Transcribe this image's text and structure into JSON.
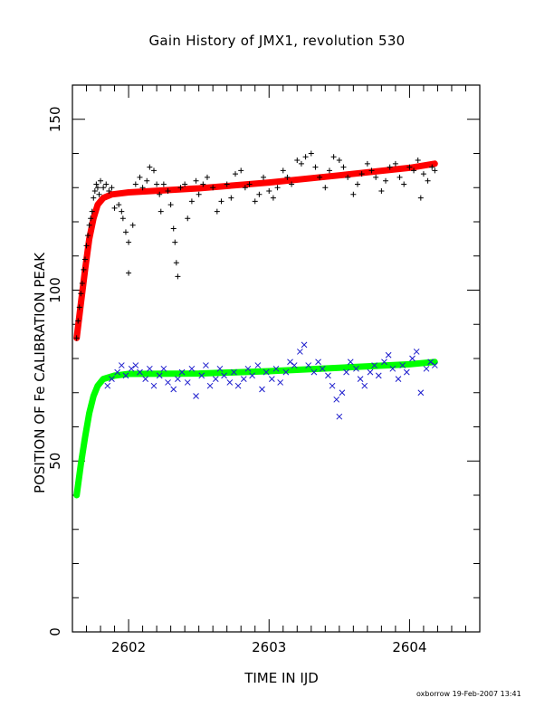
{
  "chart_data": {
    "type": "scatter",
    "title": "Gain History of JMX1, revolution 530",
    "xlabel": "TIME IN IJD",
    "ylabel": "POSITION OF Fe CALIBRATION PEAK",
    "xlim": [
      2601.6,
      2604.5
    ],
    "ylim": [
      0,
      160
    ],
    "xticks": [
      2602,
      2603,
      2604
    ],
    "yticks": [
      0,
      50,
      100,
      150
    ],
    "grid": false,
    "legend": "none",
    "series": [
      {
        "marker": "plus",
        "color": "#000000",
        "points": [
          [
            2601.63,
            86
          ],
          [
            2601.64,
            91
          ],
          [
            2601.65,
            95
          ],
          [
            2601.66,
            99
          ],
          [
            2601.67,
            102
          ],
          [
            2601.68,
            106
          ],
          [
            2601.69,
            109
          ],
          [
            2601.7,
            113
          ],
          [
            2601.71,
            116
          ],
          [
            2601.72,
            119
          ],
          [
            2601.73,
            121
          ],
          [
            2601.74,
            123
          ],
          [
            2601.75,
            127
          ],
          [
            2601.76,
            129
          ],
          [
            2601.77,
            131
          ],
          [
            2601.78,
            130
          ],
          [
            2601.79,
            128
          ],
          [
            2601.8,
            132
          ],
          [
            2601.82,
            130
          ],
          [
            2601.84,
            131
          ],
          [
            2601.86,
            129
          ],
          [
            2601.88,
            130
          ],
          [
            2601.9,
            124
          ],
          [
            2601.93,
            125
          ],
          [
            2601.95,
            123
          ],
          [
            2601.96,
            121
          ],
          [
            2601.98,
            117
          ],
          [
            2602.0,
            114
          ],
          [
            2602.0,
            105
          ],
          [
            2602.03,
            119
          ],
          [
            2602.05,
            131
          ],
          [
            2602.08,
            133
          ],
          [
            2602.1,
            130
          ],
          [
            2602.13,
            132
          ],
          [
            2602.15,
            136
          ],
          [
            2602.18,
            135
          ],
          [
            2602.2,
            131
          ],
          [
            2602.22,
            128
          ],
          [
            2602.23,
            123
          ],
          [
            2602.25,
            131
          ],
          [
            2602.28,
            129
          ],
          [
            2602.3,
            125
          ],
          [
            2602.32,
            118
          ],
          [
            2602.33,
            114
          ],
          [
            2602.34,
            108
          ],
          [
            2602.35,
            104
          ],
          [
            2602.37,
            130
          ],
          [
            2602.4,
            131
          ],
          [
            2602.42,
            121
          ],
          [
            2602.45,
            126
          ],
          [
            2602.48,
            132
          ],
          [
            2602.5,
            128
          ],
          [
            2602.53,
            131
          ],
          [
            2602.56,
            133
          ],
          [
            2602.6,
            130
          ],
          [
            2602.63,
            123
          ],
          [
            2602.66,
            126
          ],
          [
            2602.7,
            131
          ],
          [
            2602.73,
            127
          ],
          [
            2602.76,
            134
          ],
          [
            2602.8,
            135
          ],
          [
            2602.83,
            130
          ],
          [
            2602.86,
            131
          ],
          [
            2602.9,
            126
          ],
          [
            2602.93,
            128
          ],
          [
            2602.96,
            133
          ],
          [
            2603.0,
            129
          ],
          [
            2603.03,
            127
          ],
          [
            2603.06,
            130
          ],
          [
            2603.1,
            135
          ],
          [
            2603.13,
            133
          ],
          [
            2603.16,
            131
          ],
          [
            2603.2,
            138
          ],
          [
            2603.23,
            137
          ],
          [
            2603.26,
            139
          ],
          [
            2603.3,
            140
          ],
          [
            2603.33,
            136
          ],
          [
            2603.36,
            133
          ],
          [
            2603.4,
            130
          ],
          [
            2603.43,
            135
          ],
          [
            2603.46,
            139
          ],
          [
            2603.5,
            138
          ],
          [
            2603.53,
            136
          ],
          [
            2603.56,
            133
          ],
          [
            2603.6,
            128
          ],
          [
            2603.63,
            131
          ],
          [
            2603.66,
            134
          ],
          [
            2603.7,
            137
          ],
          [
            2603.73,
            135
          ],
          [
            2603.76,
            133
          ],
          [
            2603.8,
            129
          ],
          [
            2603.83,
            132
          ],
          [
            2603.86,
            136
          ],
          [
            2603.9,
            137
          ],
          [
            2603.93,
            133
          ],
          [
            2603.96,
            131
          ],
          [
            2604.0,
            136
          ],
          [
            2604.03,
            135
          ],
          [
            2604.06,
            138
          ],
          [
            2604.08,
            127
          ],
          [
            2604.1,
            134
          ],
          [
            2604.13,
            132
          ],
          [
            2604.16,
            136
          ],
          [
            2604.18,
            135
          ]
        ]
      },
      {
        "marker": "cross",
        "color": "#1a1acc",
        "points": [
          [
            2601.85,
            72
          ],
          [
            2601.88,
            74
          ],
          [
            2601.92,
            76
          ],
          [
            2601.95,
            78
          ],
          [
            2601.98,
            75
          ],
          [
            2602.02,
            77
          ],
          [
            2602.05,
            78
          ],
          [
            2602.08,
            76
          ],
          [
            2602.12,
            74
          ],
          [
            2602.15,
            77
          ],
          [
            2602.18,
            72
          ],
          [
            2602.22,
            75
          ],
          [
            2602.25,
            77
          ],
          [
            2602.28,
            73
          ],
          [
            2602.32,
            71
          ],
          [
            2602.35,
            74
          ],
          [
            2602.38,
            76
          ],
          [
            2602.42,
            73
          ],
          [
            2602.45,
            77
          ],
          [
            2602.48,
            69
          ],
          [
            2602.52,
            75
          ],
          [
            2602.55,
            78
          ],
          [
            2602.58,
            72
          ],
          [
            2602.62,
            74
          ],
          [
            2602.65,
            77
          ],
          [
            2602.68,
            75
          ],
          [
            2602.72,
            73
          ],
          [
            2602.75,
            76
          ],
          [
            2602.78,
            72
          ],
          [
            2602.82,
            74
          ],
          [
            2602.85,
            77
          ],
          [
            2602.88,
            75
          ],
          [
            2602.92,
            78
          ],
          [
            2602.95,
            71
          ],
          [
            2602.98,
            76
          ],
          [
            2603.02,
            74
          ],
          [
            2603.05,
            77
          ],
          [
            2603.08,
            73
          ],
          [
            2603.12,
            76
          ],
          [
            2603.15,
            79
          ],
          [
            2603.18,
            78
          ],
          [
            2603.22,
            82
          ],
          [
            2603.25,
            84
          ],
          [
            2603.28,
            78
          ],
          [
            2603.32,
            76
          ],
          [
            2603.35,
            79
          ],
          [
            2603.38,
            77
          ],
          [
            2603.42,
            75
          ],
          [
            2603.45,
            72
          ],
          [
            2603.48,
            68
          ],
          [
            2603.5,
            63
          ],
          [
            2603.52,
            70
          ],
          [
            2603.55,
            76
          ],
          [
            2603.58,
            79
          ],
          [
            2603.62,
            77
          ],
          [
            2603.65,
            74
          ],
          [
            2603.68,
            72
          ],
          [
            2603.72,
            76
          ],
          [
            2603.75,
            78
          ],
          [
            2603.78,
            75
          ],
          [
            2603.82,
            79
          ],
          [
            2603.85,
            81
          ],
          [
            2603.88,
            77
          ],
          [
            2603.92,
            74
          ],
          [
            2603.95,
            78
          ],
          [
            2603.98,
            76
          ],
          [
            2604.02,
            80
          ],
          [
            2604.05,
            82
          ],
          [
            2604.08,
            70
          ],
          [
            2604.12,
            77
          ],
          [
            2604.15,
            79
          ],
          [
            2604.18,
            78
          ]
        ]
      },
      {
        "style": "thick-line",
        "color": "#ff0000",
        "points": [
          [
            2601.63,
            86
          ],
          [
            2601.66,
            96
          ],
          [
            2601.69,
            106
          ],
          [
            2601.72,
            115
          ],
          [
            2601.75,
            121
          ],
          [
            2601.78,
            125
          ],
          [
            2601.82,
            127
          ],
          [
            2601.88,
            128
          ],
          [
            2602.0,
            128.6
          ],
          [
            2602.5,
            129.8
          ],
          [
            2603.0,
            131.5
          ],
          [
            2603.5,
            133.6
          ],
          [
            2604.0,
            135.8
          ],
          [
            2604.18,
            137
          ]
        ]
      },
      {
        "style": "thick-line",
        "color": "#00ff00",
        "points": [
          [
            2601.63,
            40
          ],
          [
            2601.66,
            49
          ],
          [
            2601.69,
            57
          ],
          [
            2601.72,
            64
          ],
          [
            2601.75,
            69
          ],
          [
            2601.78,
            72
          ],
          [
            2601.82,
            74
          ],
          [
            2601.9,
            75
          ],
          [
            2602.0,
            75.5
          ],
          [
            2602.5,
            75.6
          ],
          [
            2603.0,
            76.3
          ],
          [
            2603.5,
            77.3
          ],
          [
            2604.0,
            78.3
          ],
          [
            2604.18,
            79
          ]
        ]
      }
    ]
  },
  "footer": "oxborrow 19-Feb-2007 13:41"
}
